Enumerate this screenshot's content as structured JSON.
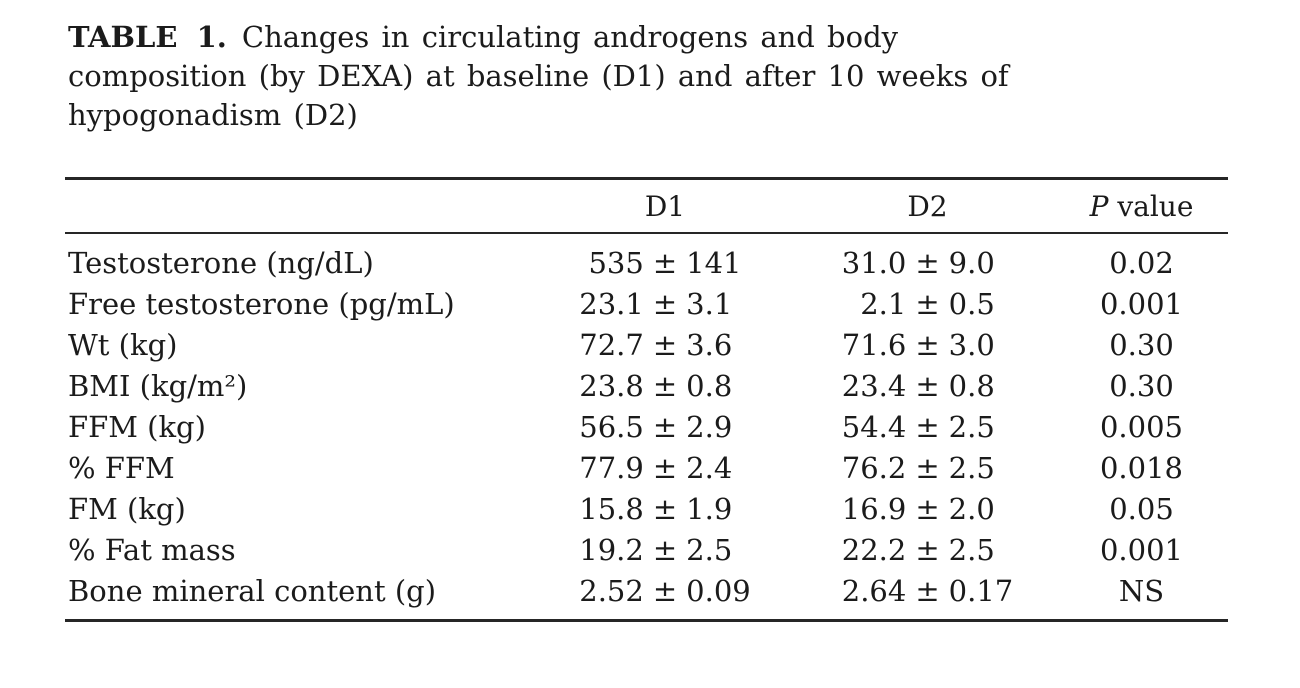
{
  "title": {
    "label": "TABLE 1.",
    "line1_rest": "Changes in circulating androgens and body",
    "line2": "composition (by DEXA) at baseline (D1) and after 10 weeks of",
    "line3": "hypogonadism (D2)"
  },
  "symbols": {
    "plus_minus": "±"
  },
  "colors": {
    "text": "#1b1b1b",
    "rule": "#262626",
    "background": "#ffffff"
  },
  "table": {
    "columns": {
      "d1": "D1",
      "d2": "D2",
      "p_italic": "P",
      "p_rest": "value"
    },
    "rows": [
      {
        "label": "Testosterone (ng/dL)",
        "d1_mean": "535",
        "d1_sd": "141",
        "d2_mean": "31.0",
        "d2_sd": "9.0",
        "p": "0.02"
      },
      {
        "label": "Free testosterone (pg/mL)",
        "d1_mean": "23.1",
        "d1_sd": "3.1",
        "d2_mean": "2.1",
        "d2_sd": "0.5",
        "p": "0.001"
      },
      {
        "label": "Wt (kg)",
        "d1_mean": "72.7",
        "d1_sd": "3.6",
        "d2_mean": "71.6",
        "d2_sd": "3.0",
        "p": "0.30"
      },
      {
        "label": "BMI (kg/m²)",
        "d1_mean": "23.8",
        "d1_sd": "0.8",
        "d2_mean": "23.4",
        "d2_sd": "0.8",
        "p": "0.30"
      },
      {
        "label": "FFM (kg)",
        "d1_mean": "56.5",
        "d1_sd": "2.9",
        "d2_mean": "54.4",
        "d2_sd": "2.5",
        "p": "0.005"
      },
      {
        "label": "% FFM",
        "d1_mean": "77.9",
        "d1_sd": "2.4",
        "d2_mean": "76.2",
        "d2_sd": "2.5",
        "p": "0.018"
      },
      {
        "label": "FM (kg)",
        "d1_mean": "15.8",
        "d1_sd": "1.9",
        "d2_mean": "16.9",
        "d2_sd": "2.0",
        "p": "0.05"
      },
      {
        "label": "% Fat mass",
        "d1_mean": "19.2",
        "d1_sd": "2.5",
        "d2_mean": "22.2",
        "d2_sd": "2.5",
        "p": "0.001"
      },
      {
        "label": "Bone mineral content (g)",
        "d1_mean": "2.52",
        "d1_sd": "0.09",
        "d2_mean": "2.64",
        "d2_sd": "0.17",
        "p": "NS"
      }
    ]
  }
}
